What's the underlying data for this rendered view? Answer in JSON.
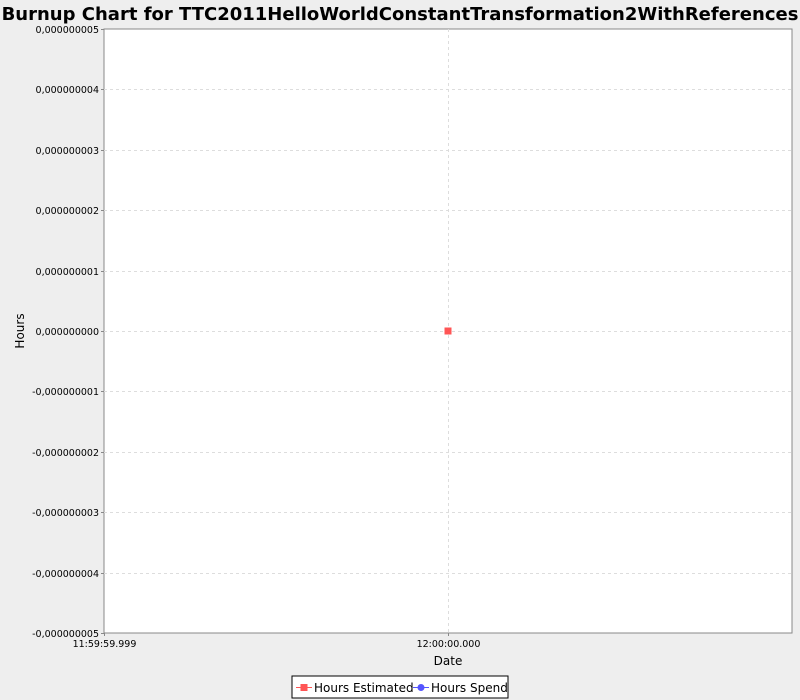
{
  "chart_data": {
    "type": "line",
    "title": "Burnup Chart for TTC2011HelloWorldConstantTransformation2WithReferences",
    "xlabel": "Date",
    "ylabel": "Hours",
    "x_ticks": [
      "11:59:59.999",
      "12:00:00.000"
    ],
    "y_ticks": [
      "0,000000005",
      "0,000000004",
      "0,000000003",
      "0,000000002",
      "0,000000001",
      "0,000000000",
      "-0,000000001",
      "-0,000000002",
      "-0,000000003",
      "-0,000000004",
      "-0,000000005"
    ],
    "ylim": [
      -5e-09,
      5e-09
    ],
    "xlim": [
      "11:59:59.999",
      "12:00:00.001"
    ],
    "grid": true,
    "legend_position": "bottom",
    "series": [
      {
        "name": "Hours Estimated",
        "color": "#ff5555",
        "marker": "square",
        "points": [
          {
            "x": "12:00:00.000",
            "y": 0
          }
        ]
      },
      {
        "name": "Hours Spend",
        "color": "#5555ff",
        "marker": "circle",
        "points": []
      }
    ]
  }
}
